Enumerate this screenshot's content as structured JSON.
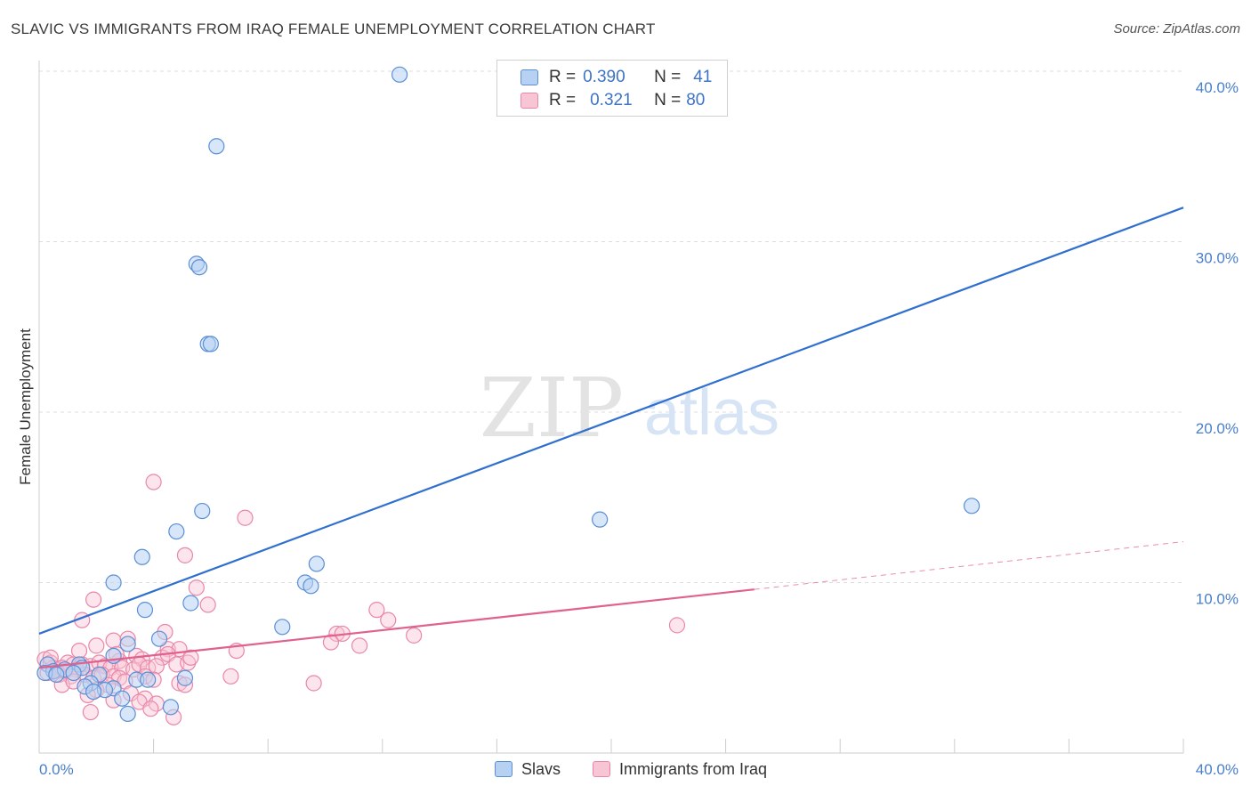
{
  "title": "SLAVIC VS IMMIGRANTS FROM IRAQ FEMALE UNEMPLOYMENT CORRELATION CHART",
  "source": "Source: ZipAtlas.com",
  "watermark": {
    "zip": "ZIP",
    "atlas": "atlas"
  },
  "legend": {
    "rows": [
      {
        "r_label": "R =",
        "r_value": "0.390",
        "n_label": "N =",
        "n_value": "41"
      },
      {
        "r_label": "R =",
        "r_value": "0.321",
        "n_label": "N =",
        "n_value": "80"
      }
    ]
  },
  "colors": {
    "slavs_fill": "#b7d1f2",
    "slavs_stroke": "#5b8fd6",
    "slavs_line": "#2f6fcf",
    "iraq_fill": "#f8c5d5",
    "iraq_stroke": "#ea87a8",
    "iraq_line": "#e0608e",
    "tick": "#4a7fc9",
    "grid": "#dddddd"
  },
  "chart_data": {
    "type": "scatter",
    "title": "SLAVIC VS IMMIGRANTS FROM IRAQ FEMALE UNEMPLOYMENT CORRELATION CHART",
    "xlabel": "",
    "ylabel": "Female Unemployment",
    "xlim": [
      0,
      40
    ],
    "ylim": [
      0,
      40
    ],
    "x_tick_labels": [
      "0.0%",
      "40.0%"
    ],
    "y_ticks": [
      10,
      20,
      30,
      40
    ],
    "y_tick_labels": [
      "10.0%",
      "20.0%",
      "30.0%",
      "40.0%"
    ],
    "grid": true,
    "series": [
      {
        "name": "Slavs",
        "R": 0.39,
        "N": 41,
        "trend": {
          "x0": 0,
          "y0": 7.0,
          "x1": 40,
          "y1": 32.0
        },
        "points": [
          [
            12.6,
            39.8
          ],
          [
            6.2,
            35.6
          ],
          [
            5.5,
            28.7
          ],
          [
            5.6,
            28.5
          ],
          [
            5.9,
            24.0
          ],
          [
            6.0,
            24.0
          ],
          [
            32.6,
            14.5
          ],
          [
            5.7,
            14.2
          ],
          [
            19.6,
            13.7
          ],
          [
            4.8,
            13.0
          ],
          [
            3.6,
            11.5
          ],
          [
            9.7,
            11.1
          ],
          [
            2.6,
            10.0
          ],
          [
            9.3,
            10.0
          ],
          [
            9.5,
            9.8
          ],
          [
            5.3,
            8.8
          ],
          [
            3.7,
            8.4
          ],
          [
            8.5,
            7.4
          ],
          [
            4.2,
            6.7
          ],
          [
            3.1,
            6.4
          ],
          [
            2.6,
            5.7
          ],
          [
            1.4,
            5.2
          ],
          [
            1.5,
            5.0
          ],
          [
            0.3,
            5.2
          ],
          [
            0.5,
            4.8
          ],
          [
            0.2,
            4.7
          ],
          [
            0.9,
            4.9
          ],
          [
            1.2,
            4.7
          ],
          [
            0.6,
            4.6
          ],
          [
            2.1,
            4.6
          ],
          [
            1.8,
            4.1
          ],
          [
            3.4,
            4.3
          ],
          [
            3.8,
            4.3
          ],
          [
            5.1,
            4.4
          ],
          [
            1.6,
            3.9
          ],
          [
            2.6,
            3.8
          ],
          [
            2.3,
            3.7
          ],
          [
            1.9,
            3.6
          ],
          [
            2.9,
            3.2
          ],
          [
            4.6,
            2.7
          ],
          [
            3.1,
            2.3
          ]
        ]
      },
      {
        "name": "Immigrants from Iraq",
        "R": 0.321,
        "N": 80,
        "trend": {
          "x0": 0,
          "y0": 5.0,
          "x1": 25,
          "y1": 9.6
        },
        "trend_dashed": {
          "x0": 25,
          "y0": 9.6,
          "x1": 40,
          "y1": 12.4
        },
        "points": [
          [
            4.0,
            15.9
          ],
          [
            7.2,
            13.8
          ],
          [
            5.1,
            11.6
          ],
          [
            1.9,
            9.0
          ],
          [
            5.5,
            9.7
          ],
          [
            5.9,
            8.7
          ],
          [
            11.8,
            8.4
          ],
          [
            12.2,
            7.8
          ],
          [
            1.5,
            7.8
          ],
          [
            4.4,
            7.1
          ],
          [
            10.4,
            7.0
          ],
          [
            10.6,
            7.0
          ],
          [
            13.1,
            6.9
          ],
          [
            22.3,
            7.5
          ],
          [
            2.6,
            6.6
          ],
          [
            3.1,
            6.7
          ],
          [
            2.0,
            6.3
          ],
          [
            4.5,
            6.1
          ],
          [
            4.9,
            6.1
          ],
          [
            10.2,
            6.5
          ],
          [
            11.2,
            6.3
          ],
          [
            1.4,
            6.0
          ],
          [
            3.4,
            5.7
          ],
          [
            3.6,
            5.5
          ],
          [
            4.3,
            5.6
          ],
          [
            4.5,
            5.8
          ],
          [
            2.8,
            5.4
          ],
          [
            1.0,
            5.3
          ],
          [
            1.2,
            5.2
          ],
          [
            0.2,
            5.5
          ],
          [
            0.4,
            5.3
          ],
          [
            0.5,
            5.0
          ],
          [
            0.6,
            4.9
          ],
          [
            0.8,
            5.0
          ],
          [
            1.3,
            4.9
          ],
          [
            1.5,
            5.2
          ],
          [
            1.8,
            5.1
          ],
          [
            2.1,
            5.3
          ],
          [
            2.3,
            5.1
          ],
          [
            2.5,
            5.0
          ],
          [
            2.9,
            5.0
          ],
          [
            3.3,
            4.9
          ],
          [
            3.5,
            5.2
          ],
          [
            3.8,
            5.0
          ],
          [
            4.1,
            5.1
          ],
          [
            4.8,
            5.2
          ],
          [
            5.2,
            5.3
          ],
          [
            0.3,
            4.7
          ],
          [
            0.7,
            4.6
          ],
          [
            0.9,
            4.8
          ],
          [
            1.1,
            4.5
          ],
          [
            1.6,
            4.6
          ],
          [
            1.9,
            4.4
          ],
          [
            2.2,
            4.6
          ],
          [
            2.6,
            4.5
          ],
          [
            2.8,
            4.4
          ],
          [
            3.0,
            4.2
          ],
          [
            3.7,
            4.5
          ],
          [
            4.0,
            4.3
          ],
          [
            6.7,
            4.5
          ],
          [
            9.6,
            4.1
          ],
          [
            0.8,
            4.0
          ],
          [
            2.4,
            4.0
          ],
          [
            4.9,
            4.1
          ],
          [
            5.1,
            4.0
          ],
          [
            1.2,
            4.2
          ],
          [
            3.2,
            3.5
          ],
          [
            2.0,
            3.7
          ],
          [
            1.7,
            3.4
          ],
          [
            3.7,
            3.2
          ],
          [
            2.6,
            3.1
          ],
          [
            3.5,
            3.0
          ],
          [
            4.1,
            2.9
          ],
          [
            3.9,
            2.6
          ],
          [
            4.7,
            2.1
          ],
          [
            1.8,
            2.4
          ],
          [
            0.4,
            5.6
          ],
          [
            6.9,
            6.0
          ],
          [
            5.3,
            5.6
          ],
          [
            2.7,
            5.8
          ]
        ]
      }
    ]
  },
  "bottom_legend": [
    {
      "label": "Slavs"
    },
    {
      "label": "Immigrants from Iraq"
    }
  ]
}
